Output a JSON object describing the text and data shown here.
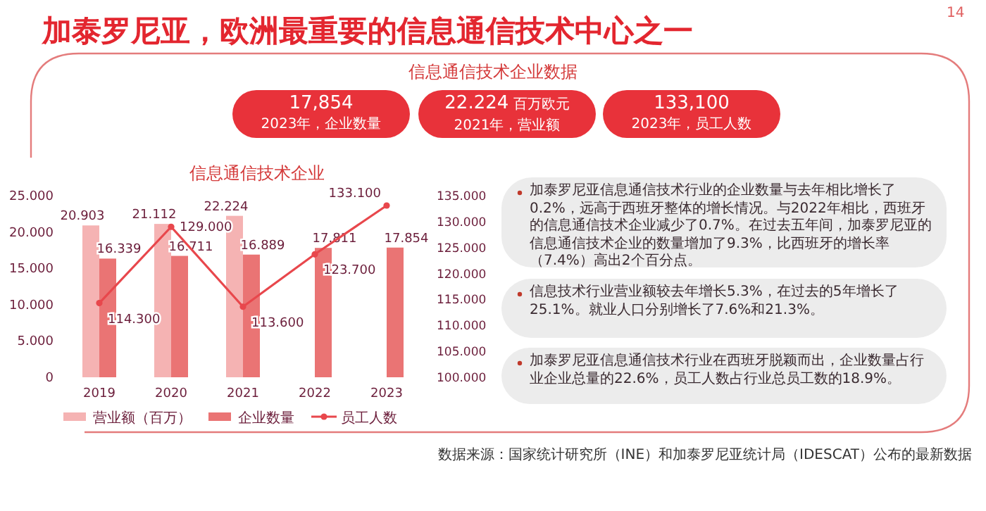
{
  "chart_data": [
    {
      "type": "other",
      "title": "加泰罗尼亚，欧洲最重要的信息通信技术中心之一",
      "subtitle": "信息通信技术企业数据",
      "annotations": [
        "14",
        "17,854",
        "2023年，企业数量",
        "22.224",
        "百万欧元",
        "2021年，营业额",
        "133,100",
        "2023年，员工人数"
      ]
    },
    {
      "type": "bar",
      "title": "信息通信技术企业",
      "categories": [
        "2019",
        "2020",
        "2021",
        "2022",
        "2023"
      ],
      "series": [
        {
          "name": "营业额（百万）",
          "color": "#f5b3b3",
          "values": [
            20.903,
            21.112,
            22.224,
            null,
            null
          ],
          "value_labels": [
            "20.903",
            "21.112",
            "22.224",
            null,
            null
          ]
        },
        {
          "name": "企业数量",
          "color": "#ea7474",
          "values": [
            16.339,
            16.711,
            16.889,
            17.811,
            17.854
          ],
          "value_labels": [
            "16.339",
            "16.711",
            "16.889",
            "17.811",
            "17.854"
          ]
        },
        {
          "name": "员工人数",
          "type": "line",
          "axis": "y2",
          "color": "#e8474c",
          "marker": "circle",
          "values": [
            114.3,
            129.0,
            113.6,
            123.7,
            133.1
          ],
          "value_labels": [
            "114.300",
            "129.000",
            "113.600",
            "123.700",
            "133.100"
          ]
        }
      ],
      "ylim": [
        0,
        25
      ],
      "yticks": [
        {
          "value": 0,
          "label": "0"
        },
        {
          "value": 5,
          "label": "5.000"
        },
        {
          "value": 10,
          "label": "10.000"
        },
        {
          "value": 15,
          "label": "15.000"
        },
        {
          "value": 20,
          "label": "20.000"
        },
        {
          "value": 25,
          "label": "25.000"
        }
      ],
      "y2lim": [
        100,
        135
      ],
      "y2ticks": [
        {
          "value": 100,
          "label": "100.000"
        },
        {
          "value": 105,
          "label": "105.000"
        },
        {
          "value": 110,
          "label": "110.000"
        },
        {
          "value": 115,
          "label": "115.000"
        },
        {
          "value": 120,
          "label": "120.000"
        },
        {
          "value": 125,
          "label": "125.000"
        },
        {
          "value": 130,
          "label": "130.000"
        },
        {
          "value": 135,
          "label": "135.000"
        }
      ],
      "legend": "bottom",
      "annotations": [
        "加泰罗尼亚信息通信技术行业的企业数量与去年相比增长了0.2%，远高于西班牙整体的增长情况。与2022年相比，西班牙的信息通信技术企业减少了0.7%。在过去五年间，加泰罗尼亚的信息通信技术企业的数量增加了9.3%，比西班牙的增长率（7.4%）高出2个百分点。",
        "信息技术行业营业额较去年增长5.3%，在过去的5年增长了25.1%。就业人口分别增长了7.6%和21.3%。",
        "加泰罗尼亚信息通信技术行业在西班牙脱颖而出，企业数量占行业企业总量的22.6%，员工人数占行业总员工数的18.9%。",
        "数据来源：国家统计研究所（INE）和加泰罗尼亚统计局（IDESCAT）公布的最新数据"
      ]
    }
  ]
}
